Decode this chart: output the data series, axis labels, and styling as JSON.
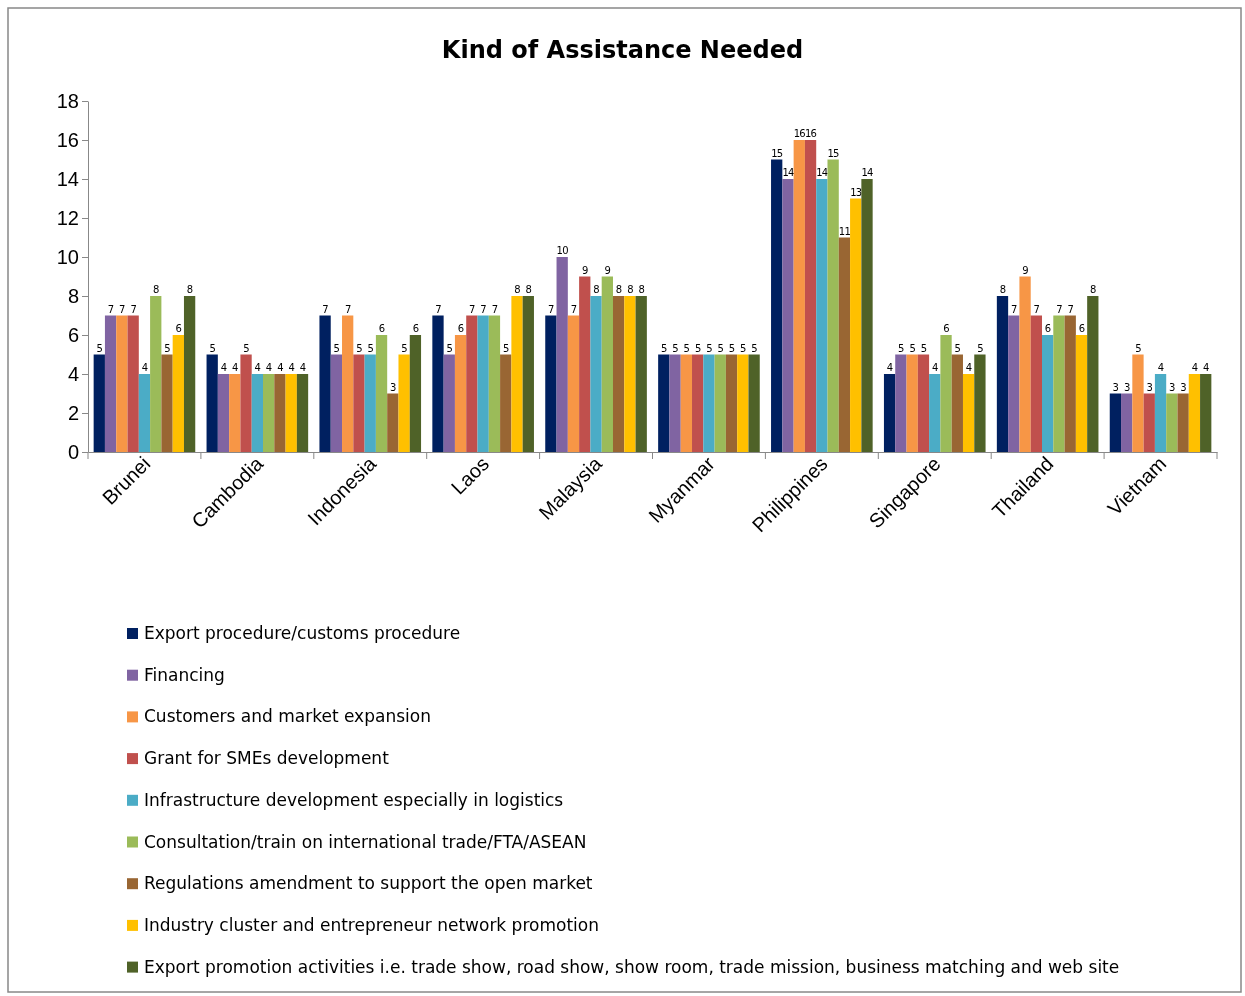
{
  "chart_data": {
    "type": "bar",
    "title": "Kind of Assistance Needed",
    "categories": [
      "Brunei",
      "Cambodia",
      "Indonesia",
      "Laos",
      "Malaysia",
      "Myanmar",
      "Philippines",
      "Singapore",
      "Thailand",
      "Vietnam"
    ],
    "series": [
      {
        "name": "Export procedure/customs procedure",
        "color": "#002060",
        "values": [
          5,
          5,
          7,
          7,
          7,
          5,
          15,
          4,
          8,
          3
        ]
      },
      {
        "name": "Financing",
        "color": "#8064a2",
        "values": [
          7,
          4,
          5,
          5,
          10,
          5,
          14,
          5,
          7,
          3
        ]
      },
      {
        "name": "Customers and market expansion",
        "color": "#f79646",
        "values": [
          7,
          4,
          7,
          6,
          7,
          5,
          16,
          5,
          9,
          5
        ]
      },
      {
        "name": "Grant for SMEs development",
        "color": "#c0504d",
        "values": [
          7,
          5,
          5,
          7,
          9,
          5,
          16,
          5,
          7,
          3
        ]
      },
      {
        "name": "Infrastructure development especially in logistics",
        "color": "#4bacc6",
        "values": [
          4,
          4,
          5,
          7,
          8,
          5,
          14,
          4,
          6,
          4
        ]
      },
      {
        "name": "Consultation/train on international trade/FTA/ASEAN",
        "color": "#9bbb59",
        "values": [
          8,
          4,
          6,
          7,
          9,
          5,
          15,
          6,
          7,
          3
        ]
      },
      {
        "name": "Regulations amendment to support the open market",
        "color": "#996633",
        "values": [
          5,
          4,
          3,
          5,
          8,
          5,
          11,
          5,
          7,
          3
        ]
      },
      {
        "name": "Industry cluster and entrepreneur network promotion",
        "color": "#ffc000",
        "values": [
          6,
          4,
          5,
          8,
          8,
          5,
          13,
          4,
          6,
          4
        ]
      },
      {
        "name": "Export promotion activities i.e. trade show, road show, show room, trade mission, business matching and web site",
        "color": "#4f6228",
        "values": [
          8,
          4,
          6,
          8,
          8,
          5,
          14,
          5,
          8,
          4
        ]
      }
    ],
    "ylim": [
      0,
      18
    ],
    "yticks": [
      0,
      2,
      4,
      6,
      8,
      10,
      12,
      14,
      16,
      18
    ],
    "grid": false,
    "legend": "bottom",
    "data_labels": true
  }
}
